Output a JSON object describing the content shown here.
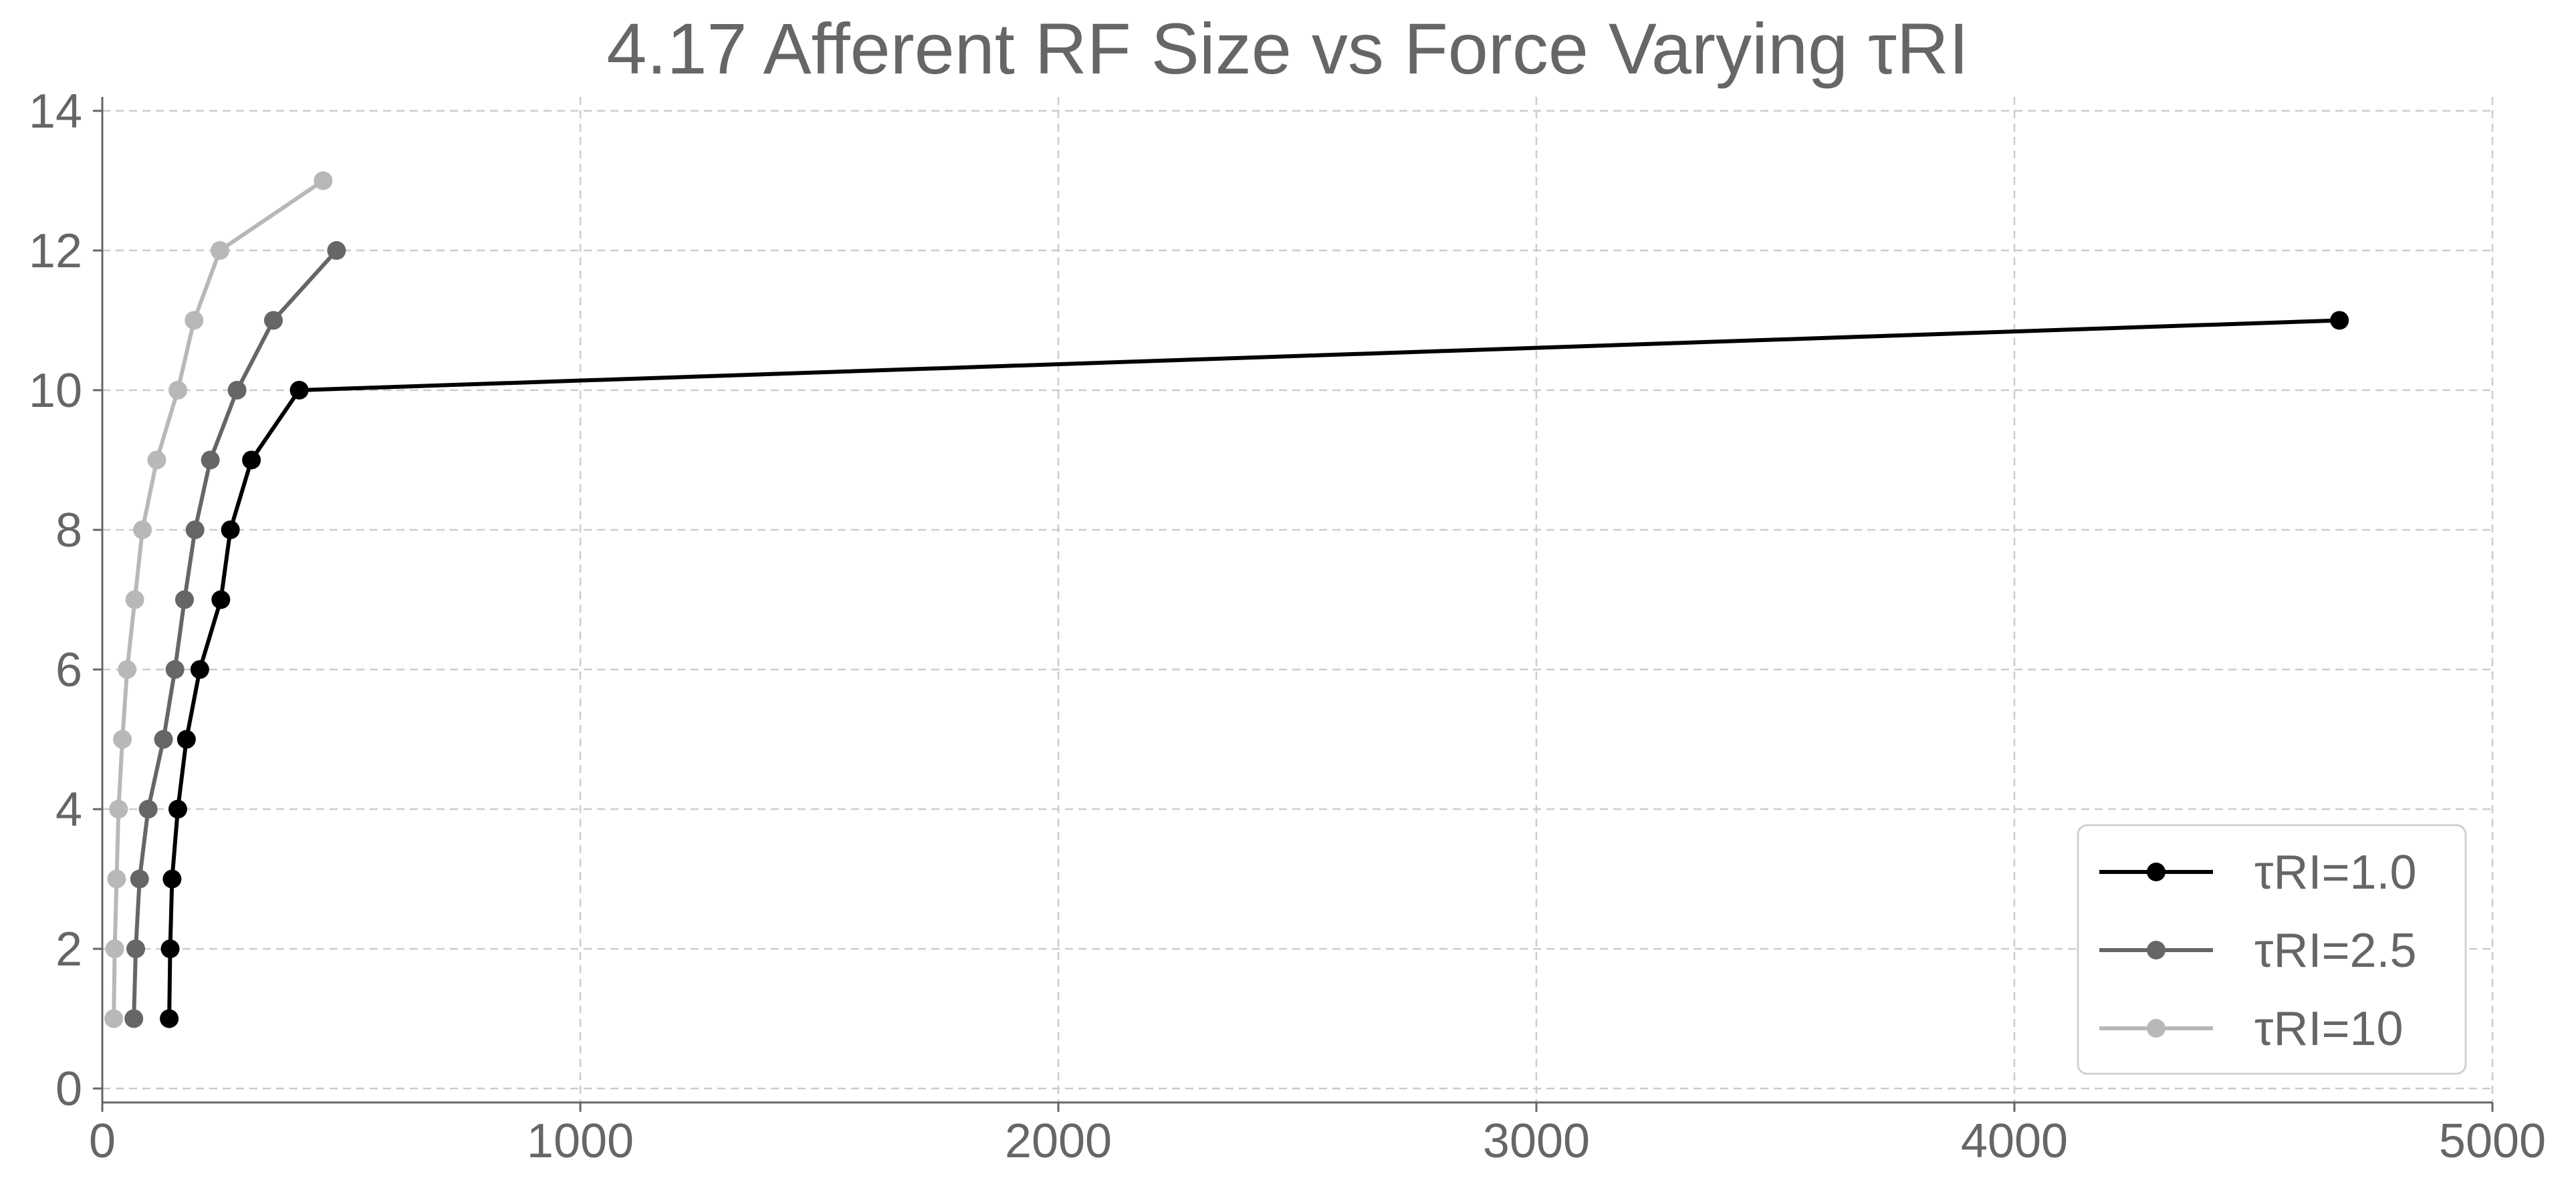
{
  "chart_data": {
    "type": "line",
    "title": "4.17 Afferent RF Size vs Force Varying τRI",
    "xlabel": "",
    "ylabel": "",
    "xlim": [
      0,
      5000
    ],
    "ylim": [
      0,
      14
    ],
    "x_ticks": [
      0,
      1000,
      2000,
      3000,
      4000,
      5000
    ],
    "y_ticks": [
      0,
      2,
      4,
      6,
      8,
      10,
      12,
      14
    ],
    "grid": true,
    "legend_position": "bottom-right",
    "series": [
      {
        "name": "τRI=1.0",
        "color": "#000000",
        "points": [
          {
            "x": 140,
            "y": 1
          },
          {
            "x": 142,
            "y": 2
          },
          {
            "x": 146,
            "y": 3
          },
          {
            "x": 158,
            "y": 4
          },
          {
            "x": 176,
            "y": 5
          },
          {
            "x": 204,
            "y": 6
          },
          {
            "x": 248,
            "y": 7
          },
          {
            "x": 268,
            "y": 8
          },
          {
            "x": 312,
            "y": 9
          },
          {
            "x": 412,
            "y": 10
          },
          {
            "x": 4680,
            "y": 11
          }
        ]
      },
      {
        "name": "τRI=2.5",
        "color": "#666666",
        "points": [
          {
            "x": 66,
            "y": 1
          },
          {
            "x": 70,
            "y": 2
          },
          {
            "x": 78,
            "y": 3
          },
          {
            "x": 96,
            "y": 4
          },
          {
            "x": 128,
            "y": 5
          },
          {
            "x": 152,
            "y": 6
          },
          {
            "x": 172,
            "y": 7
          },
          {
            "x": 194,
            "y": 8
          },
          {
            "x": 226,
            "y": 9
          },
          {
            "x": 282,
            "y": 10
          },
          {
            "x": 358,
            "y": 11
          },
          {
            "x": 490,
            "y": 12
          }
        ]
      },
      {
        "name": "τRI=10",
        "color": "#b8b8b8",
        "points": [
          {
            "x": 24,
            "y": 1
          },
          {
            "x": 26,
            "y": 2
          },
          {
            "x": 30,
            "y": 3
          },
          {
            "x": 34,
            "y": 4
          },
          {
            "x": 42,
            "y": 5
          },
          {
            "x": 52,
            "y": 6
          },
          {
            "x": 68,
            "y": 7
          },
          {
            "x": 84,
            "y": 8
          },
          {
            "x": 114,
            "y": 9
          },
          {
            "x": 158,
            "y": 10
          },
          {
            "x": 192,
            "y": 11
          },
          {
            "x": 246,
            "y": 12
          },
          {
            "x": 462,
            "y": 13
          }
        ]
      }
    ]
  }
}
